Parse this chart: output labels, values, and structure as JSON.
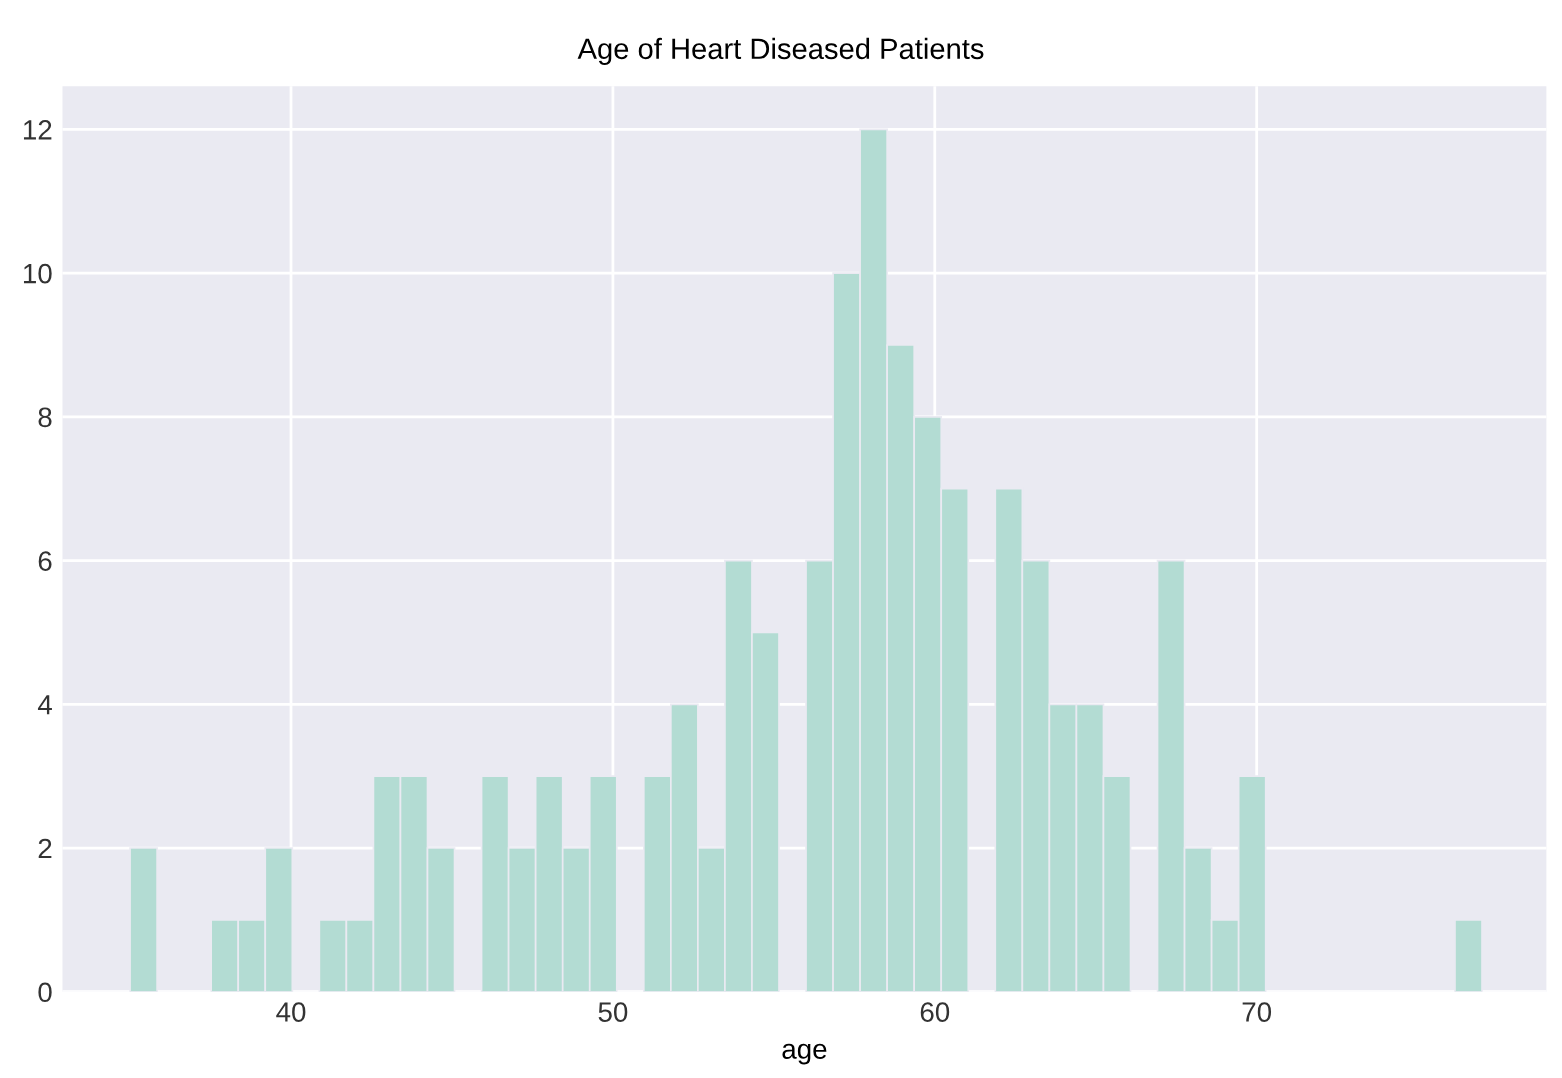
{
  "chart_data": {
    "type": "histogram",
    "title": "Age of Heart Diseased Patients",
    "xlabel": "age",
    "bins": [
      35.0,
      35.84,
      36.68,
      37.52,
      38.36,
      39.2,
      40.04,
      40.88,
      41.72,
      42.56,
      43.4,
      44.24,
      45.08,
      45.92,
      46.76,
      47.6,
      48.44,
      49.28,
      50.12,
      50.96,
      51.8,
      52.64,
      53.48,
      54.32,
      55.16,
      56.0,
      56.84,
      57.68,
      58.52,
      59.36,
      60.2,
      61.04,
      61.88,
      62.72,
      63.56,
      64.4,
      65.24,
      66.08,
      66.92,
      67.76,
      68.6,
      69.44,
      70.28,
      71.12,
      71.96,
      72.8,
      73.64,
      74.48,
      75.32,
      76.16,
      77.0
    ],
    "values": [
      2,
      0,
      0,
      1,
      1,
      2,
      0,
      1,
      1,
      3,
      3,
      2,
      0,
      3,
      2,
      3,
      2,
      3,
      0,
      3,
      4,
      2,
      6,
      5,
      0,
      6,
      10,
      12,
      9,
      8,
      7,
      0,
      7,
      6,
      4,
      4,
      3,
      0,
      6,
      2,
      1,
      3,
      0,
      0,
      0,
      0,
      0,
      0,
      0,
      1
    ],
    "color": "#b3dcd3",
    "xlim": [
      32.9,
      79.0
    ],
    "ylim": [
      0,
      12.6
    ],
    "xticks": [
      40,
      50,
      60,
      70
    ],
    "yticks": [
      0,
      2,
      4,
      6,
      8,
      10,
      12
    ],
    "grid": true
  }
}
